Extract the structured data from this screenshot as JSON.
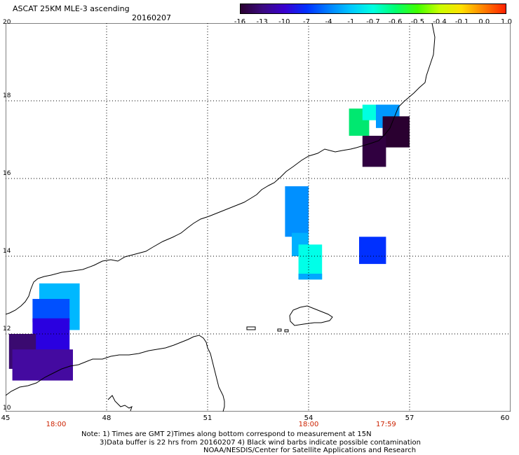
{
  "header": {
    "title": "ASCAT 25KM MLE-3 ascending",
    "date": "20160207"
  },
  "colorbar": {
    "labels": [
      "-16",
      "-13",
      "-10",
      "-7",
      "-4",
      "-1",
      "-0.7",
      "-0.6",
      "-0.5",
      "-0.4",
      "-0.1",
      "0.0",
      "1.0"
    ],
    "colors": [
      "#2a0030",
      "#3b0a80",
      "#3a00d0",
      "#0030ff",
      "#0080ff",
      "#00c8ff",
      "#00ffe0",
      "#00ff70",
      "#40ff00",
      "#c8ff00",
      "#ffe000",
      "#ff8000",
      "#ff2000"
    ]
  },
  "axes": {
    "lat_ticks": [
      {
        "value": 20,
        "label": "20"
      },
      {
        "value": 18,
        "label": "18"
      },
      {
        "value": 16,
        "label": "16"
      },
      {
        "value": 14,
        "label": "14"
      },
      {
        "value": 12,
        "label": "12"
      },
      {
        "value": 10,
        "label": "10"
      }
    ],
    "lon_ticks": [
      {
        "value": 45,
        "label": "45"
      },
      {
        "value": 48,
        "label": "48"
      },
      {
        "value": 51,
        "label": "51"
      },
      {
        "value": 54,
        "label": "54"
      },
      {
        "value": 57,
        "label": "57"
      },
      {
        "value": 60,
        "label": "60"
      }
    ],
    "lon_range": [
      45,
      60
    ],
    "lat_range": [
      10,
      20
    ]
  },
  "time_labels": [
    {
      "lon": 46.5,
      "label": "18:00"
    },
    {
      "lon": 54.0,
      "label": "18:00"
    },
    {
      "lon": 56.3,
      "label": "17:59"
    }
  ],
  "notes": {
    "line1": "Note: 1) Times are GMT 2)Times along bottom correspond to measurement at 15N",
    "line2": "3)Data buffer is 22 hrs from 20160207 4) Black wind barbs indicate possible contamination",
    "line3": "NOAA/NESDIS/Center for Satellite Applications and Research"
  },
  "swaths": [
    {
      "lon0": 46.0,
      "lat0": 12.1,
      "lon1": 47.2,
      "lat1": 13.3,
      "color": "#00b8ff"
    },
    {
      "lon0": 45.8,
      "lat0": 12.3,
      "lon1": 46.9,
      "lat1": 12.9,
      "color": "#0050ff"
    },
    {
      "lon0": 45.8,
      "lat0": 11.5,
      "lon1": 46.9,
      "lat1": 12.4,
      "color": "#2a00e0"
    },
    {
      "lon0": 45.1,
      "lat0": 11.1,
      "lon1": 45.9,
      "lat1": 12.0,
      "color": "#3a0a70"
    },
    {
      "lon0": 45.2,
      "lat0": 10.8,
      "lon1": 47.0,
      "lat1": 11.6,
      "color": "#440aa0"
    },
    {
      "lon0": 53.3,
      "lat0": 14.5,
      "lon1": 54.0,
      "lat1": 15.8,
      "color": "#0090ff"
    },
    {
      "lon0": 53.5,
      "lat0": 14.0,
      "lon1": 54.0,
      "lat1": 14.6,
      "color": "#00b0ff"
    },
    {
      "lon0": 53.7,
      "lat0": 13.4,
      "lon1": 54.4,
      "lat1": 14.3,
      "color": "#00ffe8"
    },
    {
      "lon0": 53.7,
      "lat0": 13.4,
      "lon1": 54.4,
      "lat1": 13.55,
      "color": "#00a8ff"
    },
    {
      "lon0": 55.5,
      "lat0": 13.8,
      "lon1": 56.3,
      "lat1": 14.5,
      "color": "#0030ff"
    },
    {
      "lon0": 55.2,
      "lat0": 17.1,
      "lon1": 55.8,
      "lat1": 17.8,
      "color": "#00e870"
    },
    {
      "lon0": 55.6,
      "lat0": 17.5,
      "lon1": 56.6,
      "lat1": 17.9,
      "color": "#00ffe0"
    },
    {
      "lon0": 56.0,
      "lat0": 17.3,
      "lon1": 56.7,
      "lat1": 17.9,
      "color": "#0098ff"
    },
    {
      "lon0": 56.2,
      "lat0": 17.1,
      "lon1": 56.5,
      "lat1": 17.45,
      "color": "#2a10ff"
    },
    {
      "lon0": 56.2,
      "lat0": 16.8,
      "lon1": 57.0,
      "lat1": 17.6,
      "color": "#2a0030"
    },
    {
      "lon0": 55.6,
      "lat0": 16.3,
      "lon1": 56.3,
      "lat1": 17.1,
      "color": "#300040"
    }
  ]
}
